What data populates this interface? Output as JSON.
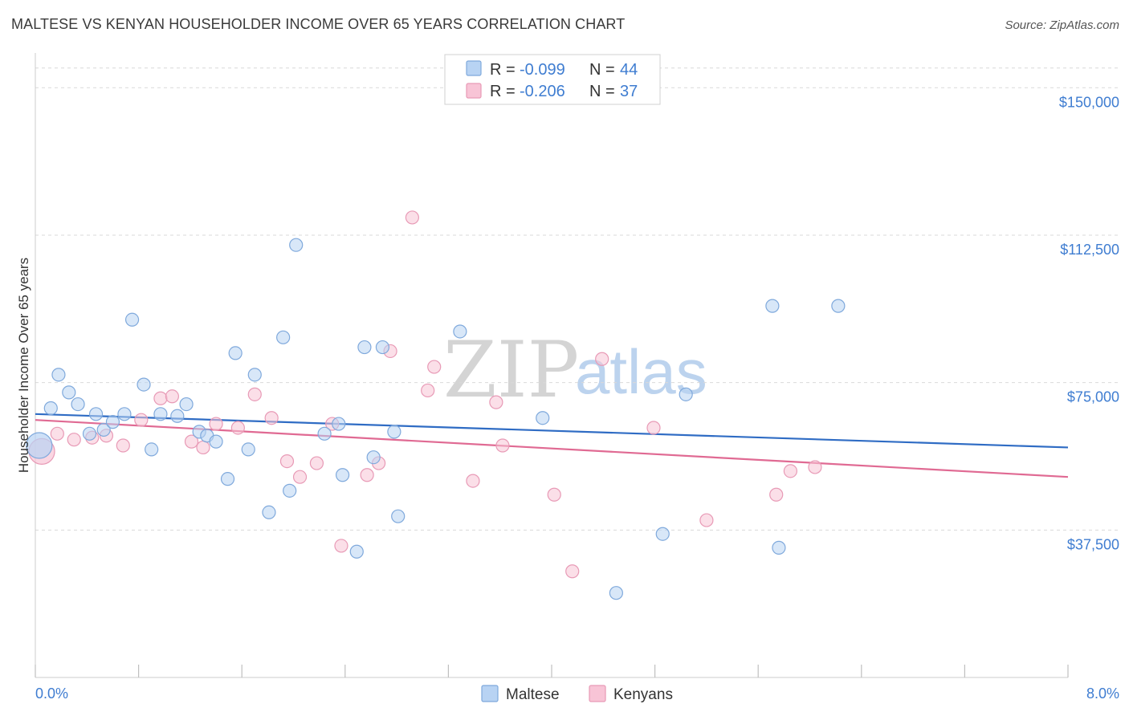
{
  "title": "MALTESE VS KENYAN HOUSEHOLDER INCOME OVER 65 YEARS CORRELATION CHART",
  "source": "Source: ZipAtlas.com",
  "watermark": {
    "zip": "ZIP",
    "atlas": "atlas"
  },
  "colors": {
    "maltese_fill": "#b8d3f3",
    "maltese_stroke": "#7fa9dc",
    "maltese_line": "#2f6cc4",
    "kenyans_fill": "#f8c4d6",
    "kenyans_stroke": "#e89ab6",
    "kenyans_line": "#e06a93",
    "grid": "#d9d9d9",
    "axis_text": "#3f7dd1"
  },
  "legend": {
    "rows": [
      {
        "r_label": "R =",
        "r_value": "-0.099",
        "n_label": "N =",
        "n_value": "44"
      },
      {
        "r_label": "R =",
        "r_value": "-0.206",
        "n_label": "N =",
        "n_value": "37"
      }
    ]
  },
  "chart_data": {
    "type": "scatter",
    "ylabel": "Householder Income Over 65 years",
    "xlim": [
      0,
      8
    ],
    "ylim": [
      0,
      157000
    ],
    "x_tick_labels": {
      "min": "0.0%",
      "max": "8.0%"
    },
    "y_ticks": [
      {
        "value": 37500,
        "label": "$37,500"
      },
      {
        "value": 75000,
        "label": "$75,000"
      },
      {
        "value": 112500,
        "label": "$112,500"
      },
      {
        "value": 150000,
        "label": "$150,000"
      }
    ],
    "legend_position": "top-center",
    "grid": true,
    "series": [
      {
        "name": "Maltese",
        "r": -0.099,
        "n": 44,
        "trend": {
          "x0": 0,
          "y0": 67000,
          "x1": 8,
          "y1": 58500
        },
        "points": [
          {
            "x": 0.03,
            "y": 59000,
            "big": true
          },
          {
            "x": 0.12,
            "y": 68500
          },
          {
            "x": 0.18,
            "y": 77000
          },
          {
            "x": 0.26,
            "y": 72500
          },
          {
            "x": 0.33,
            "y": 69500
          },
          {
            "x": 0.47,
            "y": 67000
          },
          {
            "x": 0.42,
            "y": 62000
          },
          {
            "x": 0.53,
            "y": 63000
          },
          {
            "x": 0.6,
            "y": 65000
          },
          {
            "x": 0.69,
            "y": 67000
          },
          {
            "x": 0.75,
            "y": 91000
          },
          {
            "x": 0.84,
            "y": 74500
          },
          {
            "x": 0.9,
            "y": 58000
          },
          {
            "x": 0.97,
            "y": 67000
          },
          {
            "x": 1.1,
            "y": 66500
          },
          {
            "x": 1.17,
            "y": 69500
          },
          {
            "x": 1.27,
            "y": 62500
          },
          {
            "x": 1.33,
            "y": 61500
          },
          {
            "x": 1.4,
            "y": 60000
          },
          {
            "x": 1.49,
            "y": 50500
          },
          {
            "x": 1.55,
            "y": 82500
          },
          {
            "x": 1.65,
            "y": 58000
          },
          {
            "x": 1.7,
            "y": 77000
          },
          {
            "x": 1.81,
            "y": 42000
          },
          {
            "x": 1.92,
            "y": 86500
          },
          {
            "x": 1.97,
            "y": 47500
          },
          {
            "x": 2.02,
            "y": 110000
          },
          {
            "x": 2.24,
            "y": 62000
          },
          {
            "x": 2.35,
            "y": 64500
          },
          {
            "x": 2.38,
            "y": 51500
          },
          {
            "x": 2.49,
            "y": 32000
          },
          {
            "x": 2.55,
            "y": 84000
          },
          {
            "x": 2.62,
            "y": 56000
          },
          {
            "x": 2.69,
            "y": 84000
          },
          {
            "x": 2.78,
            "y": 62500
          },
          {
            "x": 2.81,
            "y": 41000
          },
          {
            "x": 3.29,
            "y": 88000
          },
          {
            "x": 3.93,
            "y": 66000
          },
          {
            "x": 4.5,
            "y": 21500
          },
          {
            "x": 4.86,
            "y": 36500
          },
          {
            "x": 5.04,
            "y": 72000
          },
          {
            "x": 5.71,
            "y": 94500
          },
          {
            "x": 5.76,
            "y": 33000
          },
          {
            "x": 6.22,
            "y": 94500
          }
        ]
      },
      {
        "name": "Kenyans",
        "r": -0.206,
        "n": 37,
        "trend": {
          "x0": 0,
          "y0": 65500,
          "x1": 8,
          "y1": 51000
        },
        "points": [
          {
            "x": 0.05,
            "y": 57500,
            "big": true
          },
          {
            "x": 0.17,
            "y": 62000
          },
          {
            "x": 0.3,
            "y": 60500
          },
          {
            "x": 0.44,
            "y": 61000
          },
          {
            "x": 0.55,
            "y": 61500
          },
          {
            "x": 0.68,
            "y": 59000
          },
          {
            "x": 0.82,
            "y": 65500
          },
          {
            "x": 0.97,
            "y": 71000
          },
          {
            "x": 1.06,
            "y": 71500
          },
          {
            "x": 1.21,
            "y": 60000
          },
          {
            "x": 1.3,
            "y": 58500
          },
          {
            "x": 1.4,
            "y": 64500
          },
          {
            "x": 1.57,
            "y": 63500
          },
          {
            "x": 1.7,
            "y": 72000
          },
          {
            "x": 1.83,
            "y": 66000
          },
          {
            "x": 1.95,
            "y": 55000
          },
          {
            "x": 2.05,
            "y": 51000
          },
          {
            "x": 2.18,
            "y": 54500
          },
          {
            "x": 2.3,
            "y": 64500
          },
          {
            "x": 2.37,
            "y": 33500
          },
          {
            "x": 2.57,
            "y": 51500
          },
          {
            "x": 2.66,
            "y": 54500
          },
          {
            "x": 2.75,
            "y": 83000
          },
          {
            "x": 2.92,
            "y": 117000
          },
          {
            "x": 3.04,
            "y": 73000
          },
          {
            "x": 3.09,
            "y": 79000
          },
          {
            "x": 3.39,
            "y": 50000
          },
          {
            "x": 3.57,
            "y": 70000
          },
          {
            "x": 3.62,
            "y": 59000
          },
          {
            "x": 4.02,
            "y": 46500
          },
          {
            "x": 4.16,
            "y": 27000
          },
          {
            "x": 4.39,
            "y": 81000
          },
          {
            "x": 4.79,
            "y": 63500
          },
          {
            "x": 5.2,
            "y": 40000
          },
          {
            "x": 5.74,
            "y": 46500
          },
          {
            "x": 5.85,
            "y": 52500
          },
          {
            "x": 6.04,
            "y": 53500
          }
        ]
      }
    ]
  }
}
